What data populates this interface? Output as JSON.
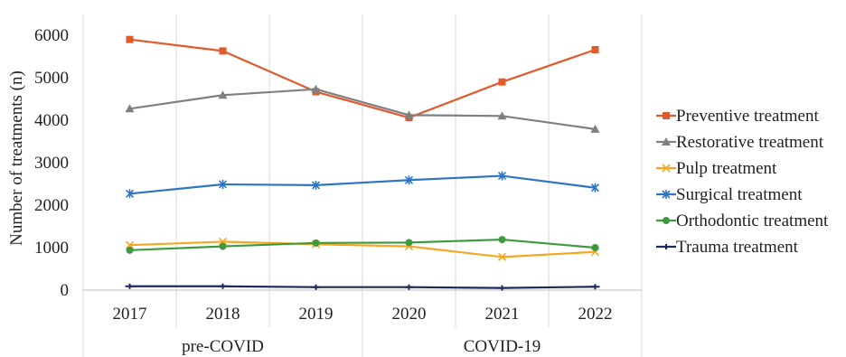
{
  "chart_data": {
    "type": "line",
    "title": "",
    "xlabel": "",
    "ylabel": "Number of treatments (n)",
    "ylim": [
      0,
      6000
    ],
    "yticks": [
      0,
      1000,
      2000,
      3000,
      4000,
      5000,
      6000
    ],
    "categories": [
      "2017",
      "2018",
      "2019",
      "2020",
      "2021",
      "2022"
    ],
    "groups": [
      {
        "label": "pre-COVID",
        "categories": [
          "2017",
          "2018",
          "2019"
        ]
      },
      {
        "label": "COVID-19",
        "categories": [
          "2020",
          "2021",
          "2022"
        ]
      }
    ],
    "grid": "vertical",
    "legend": "right",
    "series": [
      {
        "name": "Preventive treatment",
        "color": "#E15A2B",
        "marker": "square",
        "values": [
          5900,
          5630,
          4670,
          4060,
          4900,
          5660
        ]
      },
      {
        "name": "Restorative treatment",
        "color": "#808080",
        "marker": "triangle",
        "values": [
          4270,
          4590,
          4730,
          4120,
          4100,
          3790
        ]
      },
      {
        "name": "Pulp treatment",
        "color": "#F5A623",
        "marker": "x",
        "values": [
          1060,
          1140,
          1080,
          1030,
          780,
          900
        ]
      },
      {
        "name": "Surgical treatment",
        "color": "#2E75C4",
        "marker": "star",
        "values": [
          2270,
          2490,
          2470,
          2590,
          2690,
          2410
        ]
      },
      {
        "name": "Orthodontic treatment",
        "color": "#3E9A3E",
        "marker": "circle",
        "values": [
          940,
          1030,
          1110,
          1120,
          1190,
          1000
        ]
      },
      {
        "name": "Trauma treatment",
        "color": "#1F2A5A",
        "marker": "dash",
        "values": [
          90,
          90,
          70,
          70,
          50,
          80
        ]
      }
    ]
  }
}
